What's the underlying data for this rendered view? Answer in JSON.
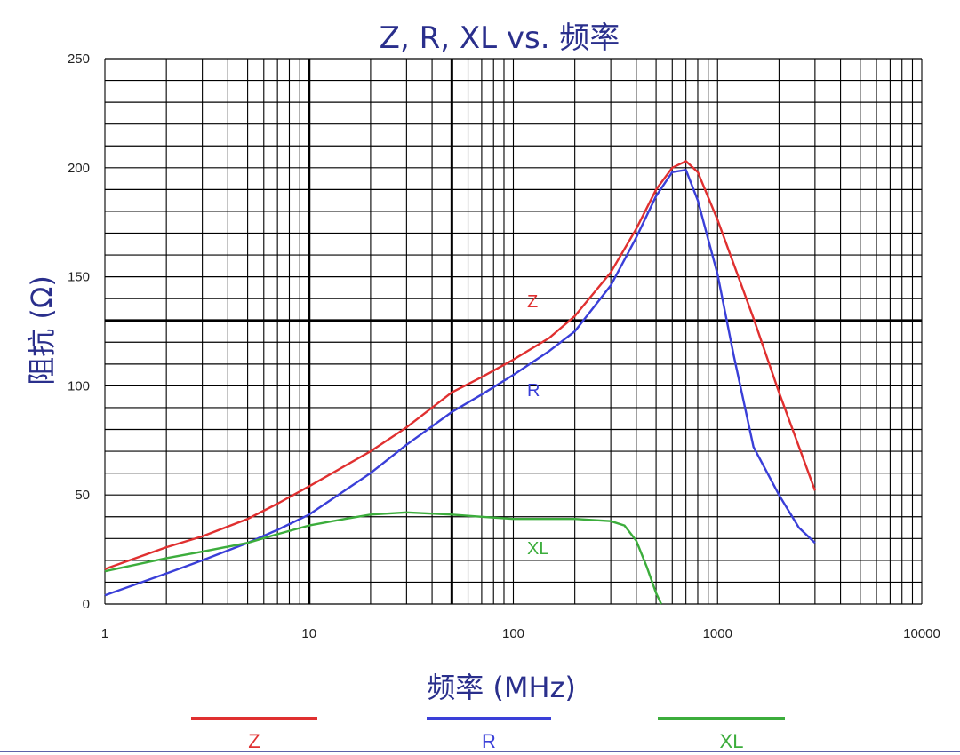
{
  "chart_data": {
    "type": "line",
    "title": "Z, R, XL vs. 频率",
    "xlabel": "频率 (MHz)",
    "ylabel": "阻抗 (Ω)",
    "x_scale": "log",
    "xlim": [
      1,
      10000
    ],
    "ylim": [
      0,
      250
    ],
    "x_ticks": [
      "1",
      "10",
      "100",
      "1000",
      "10000"
    ],
    "y_ticks": [
      "0",
      "50",
      "100",
      "150",
      "200",
      "250"
    ],
    "grid": true,
    "legend_position": "bottom",
    "series": [
      {
        "name": "Z",
        "label": "Z",
        "color": "#e03030",
        "points": [
          [
            1,
            16
          ],
          [
            2,
            26
          ],
          [
            3,
            31
          ],
          [
            5,
            39
          ],
          [
            7,
            46
          ],
          [
            10,
            54
          ],
          [
            20,
            70
          ],
          [
            30,
            81
          ],
          [
            50,
            97
          ],
          [
            70,
            104
          ],
          [
            100,
            112
          ],
          [
            150,
            122
          ],
          [
            200,
            132
          ],
          [
            300,
            152
          ],
          [
            400,
            172
          ],
          [
            500,
            190
          ],
          [
            600,
            200
          ],
          [
            700,
            203
          ],
          [
            800,
            198
          ],
          [
            1000,
            176
          ],
          [
            1500,
            131
          ],
          [
            2000,
            97
          ],
          [
            3000,
            52
          ]
        ]
      },
      {
        "name": "R",
        "label": "R",
        "color": "#3a3fd8",
        "points": [
          [
            1,
            4
          ],
          [
            2,
            14
          ],
          [
            3,
            20
          ],
          [
            5,
            28
          ],
          [
            7,
            34
          ],
          [
            10,
            41
          ],
          [
            20,
            60
          ],
          [
            30,
            73
          ],
          [
            50,
            88
          ],
          [
            70,
            96
          ],
          [
            100,
            105
          ],
          [
            150,
            116
          ],
          [
            200,
            125
          ],
          [
            300,
            146
          ],
          [
            400,
            168
          ],
          [
            500,
            187
          ],
          [
            600,
            198
          ],
          [
            700,
            199
          ],
          [
            800,
            185
          ],
          [
            1000,
            151
          ],
          [
            1200,
            114
          ],
          [
            1500,
            72
          ],
          [
            2000,
            50
          ],
          [
            2500,
            35
          ],
          [
            3000,
            28
          ]
        ]
      },
      {
        "name": "XL",
        "label": "XL",
        "color": "#3cad3c",
        "points": [
          [
            1,
            15
          ],
          [
            2,
            21
          ],
          [
            3,
            24
          ],
          [
            5,
            28
          ],
          [
            7,
            32
          ],
          [
            10,
            36
          ],
          [
            15,
            39
          ],
          [
            20,
            41
          ],
          [
            30,
            42
          ],
          [
            50,
            41
          ],
          [
            70,
            40
          ],
          [
            100,
            39
          ],
          [
            200,
            39
          ],
          [
            300,
            38
          ],
          [
            350,
            36
          ],
          [
            400,
            29
          ],
          [
            450,
            17
          ],
          [
            500,
            5
          ],
          [
            530,
            0
          ]
        ]
      }
    ],
    "legend": [
      "Z",
      "R",
      "XL"
    ]
  }
}
